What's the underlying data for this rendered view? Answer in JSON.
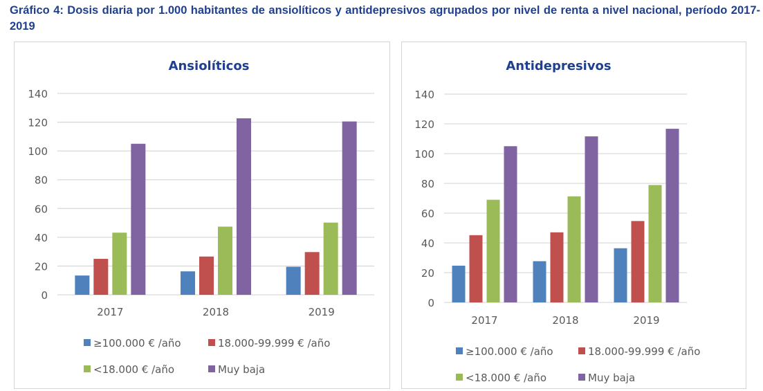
{
  "title": "Gráfico 4: Dosis diaria por 1.000 habitantes de ansiolíticos y antidepresivos  agrupados por nivel de renta a nivel nacional, período 2017-2019",
  "colors": {
    "≥100.000 € /año": "#4f81bd",
    "18.000-99.999 € /año": "#c0504d",
    "<18.000 € /año": "#9bbb59",
    "Muy baja": "#8064a2",
    "title": "#1f3f8f"
  },
  "chart_data": [
    {
      "type": "bar",
      "title": "Ansiolíticos",
      "categories": [
        "2017",
        "2018",
        "2019"
      ],
      "ylim": [
        0,
        140
      ],
      "yticks": [
        0,
        20,
        40,
        60,
        80,
        100,
        120,
        140
      ],
      "grid": true,
      "legend": "bottom",
      "series": [
        {
          "name": "≥100.000 € /año",
          "values": [
            13.4,
            16.3,
            19.5
          ]
        },
        {
          "name": "18.000-99.999 € /año",
          "values": [
            25.0,
            26.6,
            29.7
          ]
        },
        {
          "name": "<18.000 € /año",
          "values": [
            43.2,
            47.4,
            50.2
          ]
        },
        {
          "name": "Muy baja",
          "values": [
            105.0,
            122.7,
            120.5
          ]
        }
      ]
    },
    {
      "type": "bar",
      "title": "Antidepresivos",
      "categories": [
        "2017",
        "2018",
        "2019"
      ],
      "ylim": [
        0,
        140
      ],
      "yticks": [
        0,
        20,
        40,
        60,
        80,
        100,
        120,
        140
      ],
      "grid": true,
      "legend": "bottom",
      "series": [
        {
          "name": "≥100.000 € /año",
          "values": [
            24.7,
            27.7,
            36.4
          ]
        },
        {
          "name": "18.000-99.999 € /año",
          "values": [
            45.2,
            47.1,
            54.7
          ]
        },
        {
          "name": "<18.000 € /año",
          "values": [
            69.0,
            71.3,
            78.9
          ]
        },
        {
          "name": "Muy baja",
          "values": [
            105.0,
            111.6,
            116.7
          ]
        }
      ]
    }
  ]
}
